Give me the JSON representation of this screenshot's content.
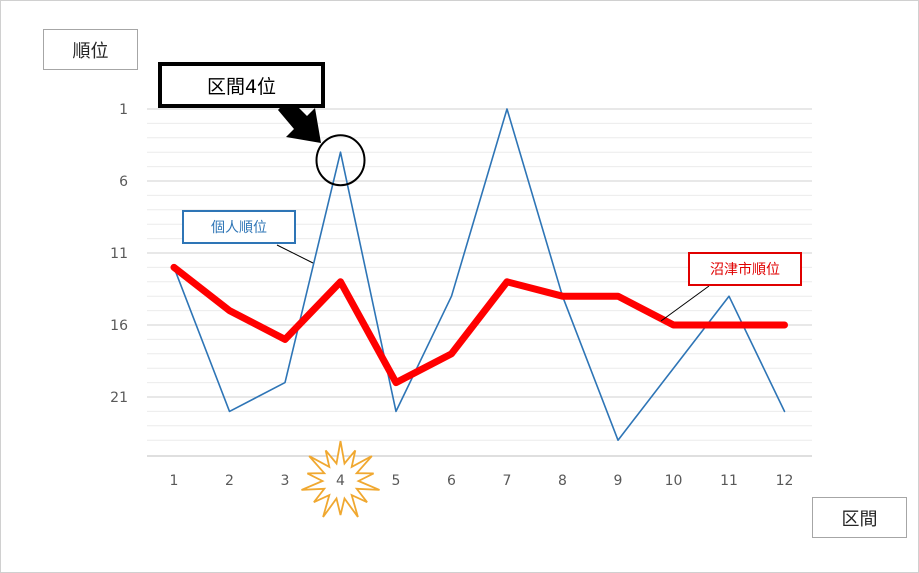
{
  "chart_data": {
    "type": "line",
    "x": [
      1,
      2,
      3,
      4,
      5,
      6,
      7,
      8,
      9,
      10,
      11,
      12
    ],
    "y_axis_inverted": true,
    "ylim": [
      1,
      24
    ],
    "y_ticks": [
      1,
      6,
      11,
      16,
      21
    ],
    "minor_gridline_step": 1,
    "grid": true,
    "ylabel": "順位",
    "xlabel": "区間",
    "series": [
      {
        "name": "個人順位",
        "values": [
          12,
          22,
          20,
          4,
          22,
          14,
          1,
          14,
          24,
          19,
          14,
          22
        ],
        "color": "#2e75b6"
      },
      {
        "name": "沼津市順位",
        "values": [
          12,
          15,
          17,
          13,
          20,
          18,
          13,
          14,
          14,
          16,
          16,
          16
        ],
        "color": "#ff0000"
      }
    ],
    "annotations": {
      "highlight_text": "区間4位",
      "highlight_x": 4,
      "highlight_series": "個人順位",
      "starburst_x": 4
    }
  }
}
